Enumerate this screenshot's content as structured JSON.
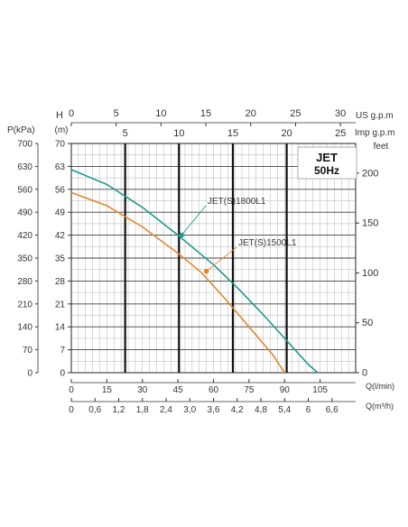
{
  "chart_data": {
    "type": "line",
    "title": "JET 50Hz",
    "title_line1": "JET",
    "title_line2": "50Hz",
    "legend": "none (series labelled on curves)",
    "grid": true,
    "x_axis": {
      "label": "Q(l/min)",
      "range": [
        0,
        120
      ],
      "ticks": [
        "0",
        "15",
        "30",
        "45",
        "60",
        "75",
        "90",
        "105"
      ]
    },
    "x_axis_m3h": {
      "label": "Q(m³/h)",
      "range": [
        0,
        7.2
      ],
      "ticks": [
        "0",
        "0,6",
        "1,2",
        "1,8",
        "2,4",
        "3,0",
        "3,6",
        "4,2",
        "4,8",
        "5,4",
        "6",
        "6,6"
      ]
    },
    "x_axis_usgpm": {
      "label": "US g.p.m",
      "range": [
        0,
        31.7
      ],
      "ticks": [
        "0",
        "5",
        "10",
        "15",
        "20",
        "25",
        "30"
      ]
    },
    "x_axis_impgpm": {
      "label": "Imp g.p.m",
      "range": [
        0,
        26.4
      ],
      "ticks": [
        "5",
        "10",
        "15",
        "20",
        "25"
      ]
    },
    "y_axis_m": {
      "label": "H (m)",
      "label_h": "H",
      "label_m": "(m)",
      "range": [
        0,
        70
      ],
      "ticks": [
        "0",
        "7",
        "14",
        "21",
        "28",
        "35",
        "42",
        "49",
        "56",
        "63",
        "70"
      ]
    },
    "y_axis_kpa": {
      "label": "P(kPa)",
      "range": [
        0,
        700
      ],
      "ticks": [
        "0",
        "70",
        "140",
        "210",
        "280",
        "350",
        "420",
        "490",
        "560",
        "630",
        "700"
      ]
    },
    "y_axis_feet": {
      "label": "feet",
      "range": [
        0,
        229.7
      ],
      "ticks": [
        "0",
        "50",
        "100",
        "150",
        "200"
      ]
    },
    "series": [
      {
        "name": "JET(S)1800L1",
        "color": "#1e9a8c",
        "x": [
          0,
          15,
          30,
          45,
          60,
          70,
          80,
          90,
          100,
          104
        ],
        "y": [
          62,
          57.5,
          50.5,
          42,
          33,
          26,
          18.5,
          10.5,
          2.5,
          0
        ],
        "marker": {
          "x": 46.5,
          "y": 42
        }
      },
      {
        "name": "JET(S)1500L1",
        "color": "#e0882e",
        "x": [
          0,
          15,
          30,
          45,
          55,
          65,
          75,
          85,
          90
        ],
        "y": [
          55,
          51,
          44.5,
          36.5,
          30.5,
          22.5,
          14,
          5.5,
          0
        ],
        "marker": {
          "x": 57,
          "y": 31
        }
      }
    ]
  }
}
